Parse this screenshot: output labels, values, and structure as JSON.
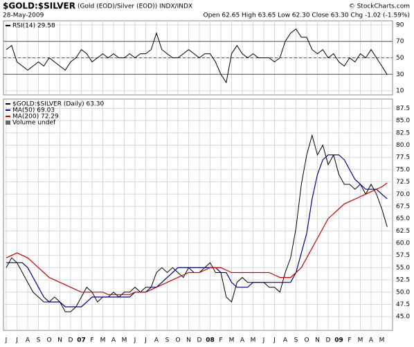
{
  "header": {
    "title": "$GOLD:$SILVER",
    "subtitle": "(Gold (EOD)/Silver (EOD)) INDX/INDX",
    "date": "28-May-2009",
    "quote": "Open 62.65 High 63.65 Low 62.30 Close 63.30 Chg -1.02 (-1.59%)",
    "watermark": "© StockCharts.com"
  },
  "chart_data": [
    {
      "type": "line",
      "ylim": [
        5,
        95
      ],
      "yticks": [
        10,
        30,
        50,
        70,
        90
      ],
      "hlines": [
        30,
        50,
        70
      ],
      "grid": true,
      "series": [
        {
          "name": "RSI(14) 29.58",
          "color": "#000000",
          "values": [
            60,
            65,
            45,
            40,
            35,
            40,
            45,
            40,
            50,
            45,
            40,
            35,
            45,
            50,
            60,
            55,
            45,
            50,
            55,
            50,
            55,
            50,
            50,
            55,
            50,
            55,
            55,
            60,
            80,
            60,
            55,
            50,
            50,
            55,
            60,
            55,
            50,
            55,
            55,
            45,
            30,
            20,
            55,
            65,
            55,
            50,
            55,
            50,
            50,
            50,
            45,
            50,
            70,
            80,
            85,
            75,
            75,
            60,
            55,
            60,
            50,
            55,
            45,
            40,
            50,
            45,
            55,
            50,
            60,
            50,
            40,
            29.58
          ]
        }
      ]
    },
    {
      "type": "line",
      "ylim": [
        42.2,
        89.4
      ],
      "grid": true,
      "yticks": [
        {
          "value": 45,
          "label": "45.0"
        },
        47.5,
        {
          "value": 50,
          "label": "50.0"
        },
        52.5,
        {
          "value": 55,
          "label": "55.0"
        },
        57.5,
        {
          "value": 60,
          "label": "60.0"
        },
        62.5,
        {
          "value": 65,
          "label": "65.0"
        },
        67.5,
        {
          "value": 70,
          "label": "70.0"
        },
        72.5,
        {
          "value": 75,
          "label": "75.0"
        },
        77.5,
        {
          "value": 80,
          "label": "80.0"
        },
        82.5,
        {
          "value": 85,
          "label": "85.0"
        },
        87.5
      ],
      "categories": [
        "J",
        null,
        "J",
        null,
        "A",
        null,
        "S",
        null,
        "O",
        null,
        "N",
        null,
        "D",
        null,
        "07",
        null,
        "F",
        null,
        "M",
        null,
        "A",
        null,
        "M",
        null,
        "J",
        null,
        "J",
        null,
        "A",
        null,
        "S",
        null,
        "O",
        null,
        "N",
        null,
        "D",
        null,
        "08",
        null,
        "F",
        null,
        "M",
        null,
        "A",
        null,
        "M",
        null,
        "J",
        null,
        "J",
        null,
        "A",
        null,
        "S",
        null,
        "O",
        null,
        "N",
        null,
        "D",
        null,
        "09",
        null,
        "F",
        null,
        "M",
        null,
        "A",
        null,
        "M",
        null
      ],
      "legend_note": "Volume undef",
      "series": [
        {
          "name": "$GOLD:$SILVER (Daily) 63.30",
          "color": "#000000",
          "values": [
            55,
            57,
            56,
            54,
            52,
            50,
            49,
            48,
            48,
            49,
            48,
            46,
            46,
            47,
            49,
            51,
            50,
            48,
            49,
            49,
            50,
            49,
            50,
            50,
            51,
            50,
            51,
            51,
            54,
            55,
            54,
            55,
            54,
            53,
            55,
            54,
            54,
            55,
            56,
            54,
            54,
            49,
            48,
            52,
            53,
            52,
            52,
            52,
            52,
            51,
            51,
            50,
            54,
            57,
            63,
            72,
            78,
            82,
            78,
            80,
            76,
            78,
            74,
            72,
            72,
            71,
            72,
            70,
            72,
            70,
            67,
            63.3
          ]
        },
        {
          "name": "MA(50) 69.03",
          "color": "#00008b",
          "values": [
            56,
            56,
            56,
            56,
            55,
            53,
            51,
            49,
            48,
            48,
            48,
            47,
            47,
            47,
            47,
            48,
            49,
            49,
            49,
            49,
            49,
            49,
            49,
            49,
            50,
            50,
            50,
            51,
            51,
            52,
            53,
            54,
            55,
            55,
            55,
            55,
            55,
            55,
            55,
            55,
            54,
            54,
            52,
            51,
            51,
            51,
            52,
            52,
            52,
            52,
            52,
            52,
            52,
            52,
            54,
            58,
            62,
            69,
            74,
            77,
            78,
            78,
            78,
            77,
            75,
            73,
            72,
            71,
            71,
            71,
            70,
            69.03
          ]
        },
        {
          "name": "MA(200) 72.29",
          "color": "#cc0000",
          "values": [
            57,
            57.5,
            58,
            57.5,
            57,
            56,
            55,
            54,
            53,
            52.5,
            52,
            51.5,
            51,
            50.5,
            50,
            50,
            50,
            50,
            50,
            49.5,
            49.5,
            49.5,
            49.5,
            49.5,
            50,
            50,
            50,
            50.5,
            51,
            51.5,
            52,
            52.5,
            53,
            53.5,
            54,
            54,
            54,
            54.5,
            55,
            55,
            55,
            54.5,
            54,
            54,
            54,
            54,
            54,
            54,
            54,
            54,
            53.5,
            53,
            53,
            53,
            54,
            55,
            57,
            59,
            61,
            63,
            65,
            66,
            67,
            68,
            68.5,
            69,
            69.5,
            70,
            70.5,
            71,
            71.5,
            72.29
          ]
        }
      ]
    }
  ]
}
